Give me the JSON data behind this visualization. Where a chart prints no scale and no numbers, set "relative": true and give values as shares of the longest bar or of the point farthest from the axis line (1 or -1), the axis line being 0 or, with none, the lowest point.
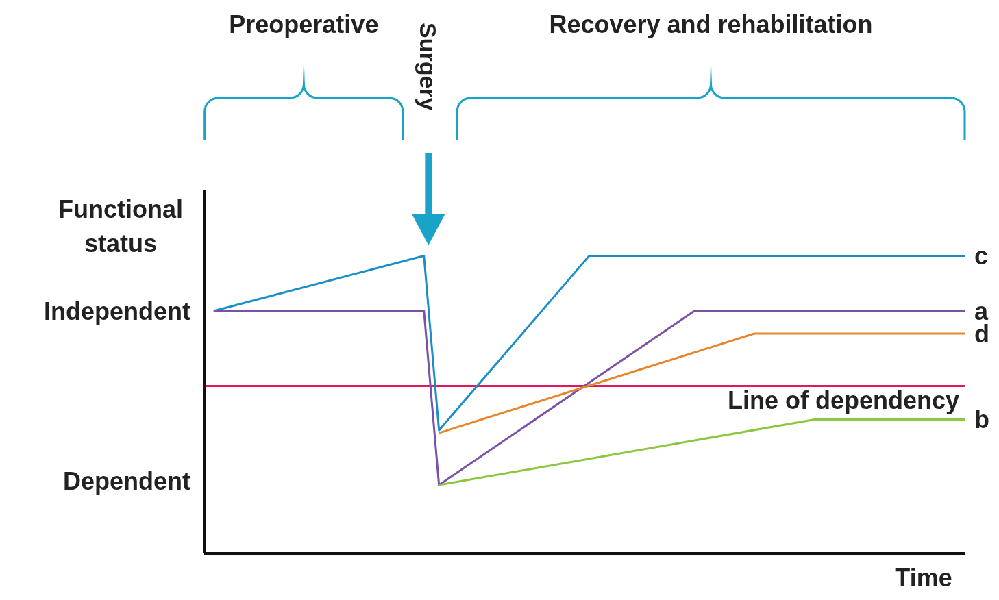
{
  "chart_data": {
    "type": "line",
    "relative": true,
    "xlabel": "Time",
    "ylabel": "Functional status",
    "tick_labels": false,
    "line_style": "solid",
    "categories": [
      null,
      null,
      null,
      null,
      null,
      null,
      null,
      null,
      null,
      null,
      null,
      null,
      null,
      null,
      null,
      null,
      null,
      null,
      null,
      null,
      null,
      null,
      null,
      null,
      null,
      null,
      null,
      null,
      null,
      null,
      null,
      null,
      null,
      null,
      null,
      null,
      null,
      null,
      null,
      null,
      null,
      null,
      null,
      null,
      null,
      null,
      null,
      null,
      null,
      null,
      null
    ],
    "series": [
      {
        "name": "c",
        "color": "#1a8fc7",
        "values": [
          0.815,
          null,
          null,
          null,
          null,
          null,
          null,
          null,
          null,
          null,
          null,
          null,
          null,
          null,
          1.0,
          0.414,
          null,
          null,
          null,
          null,
          null,
          null,
          null,
          null,
          null,
          1.0,
          null,
          null,
          null,
          null,
          null,
          null,
          null,
          null,
          null,
          null,
          null,
          null,
          null,
          null,
          null,
          null,
          null,
          null,
          null,
          null,
          null,
          null,
          null,
          null,
          1.0
        ]
      },
      {
        "name": "a",
        "color": "#7b52a8",
        "values": [
          0.815,
          null,
          null,
          null,
          null,
          null,
          null,
          null,
          null,
          null,
          null,
          null,
          null,
          null,
          0.815,
          0.23,
          null,
          null,
          null,
          null,
          null,
          null,
          null,
          null,
          null,
          null,
          null,
          null,
          null,
          null,
          null,
          null,
          0.815,
          null,
          null,
          null,
          null,
          null,
          null,
          null,
          null,
          null,
          null,
          null,
          null,
          null,
          null,
          null,
          null,
          null,
          0.815
        ]
      },
      {
        "name": "d",
        "color": "#e8862e",
        "values": [
          null,
          null,
          null,
          null,
          null,
          null,
          null,
          null,
          null,
          null,
          null,
          null,
          null,
          null,
          null,
          0.405,
          null,
          null,
          null,
          null,
          null,
          null,
          null,
          null,
          null,
          null,
          null,
          null,
          null,
          null,
          null,
          null,
          null,
          null,
          null,
          null,
          0.739,
          null,
          null,
          null,
          null,
          null,
          null,
          null,
          null,
          null,
          null,
          null,
          null,
          null,
          0.739
        ]
      },
      {
        "name": "b",
        "color": "#8dc63f",
        "values": [
          null,
          null,
          null,
          null,
          null,
          null,
          null,
          null,
          null,
          null,
          null,
          null,
          null,
          null,
          null,
          0.23,
          null,
          null,
          null,
          null,
          null,
          null,
          null,
          null,
          null,
          null,
          null,
          null,
          null,
          null,
          null,
          null,
          null,
          null,
          null,
          null,
          null,
          null,
          null,
          null,
          0.45,
          null,
          null,
          null,
          null,
          null,
          null,
          null,
          null,
          null,
          0.45
        ]
      }
    ],
    "ref_lines": [
      {
        "axis": "y",
        "value": 0.563,
        "label": "Line of dependency",
        "color": "#e0185e"
      }
    ],
    "annotations": [
      "Independent",
      "Dependent",
      "Preoperative",
      "Surgery",
      "Recovery and rehabilitation"
    ]
  }
}
